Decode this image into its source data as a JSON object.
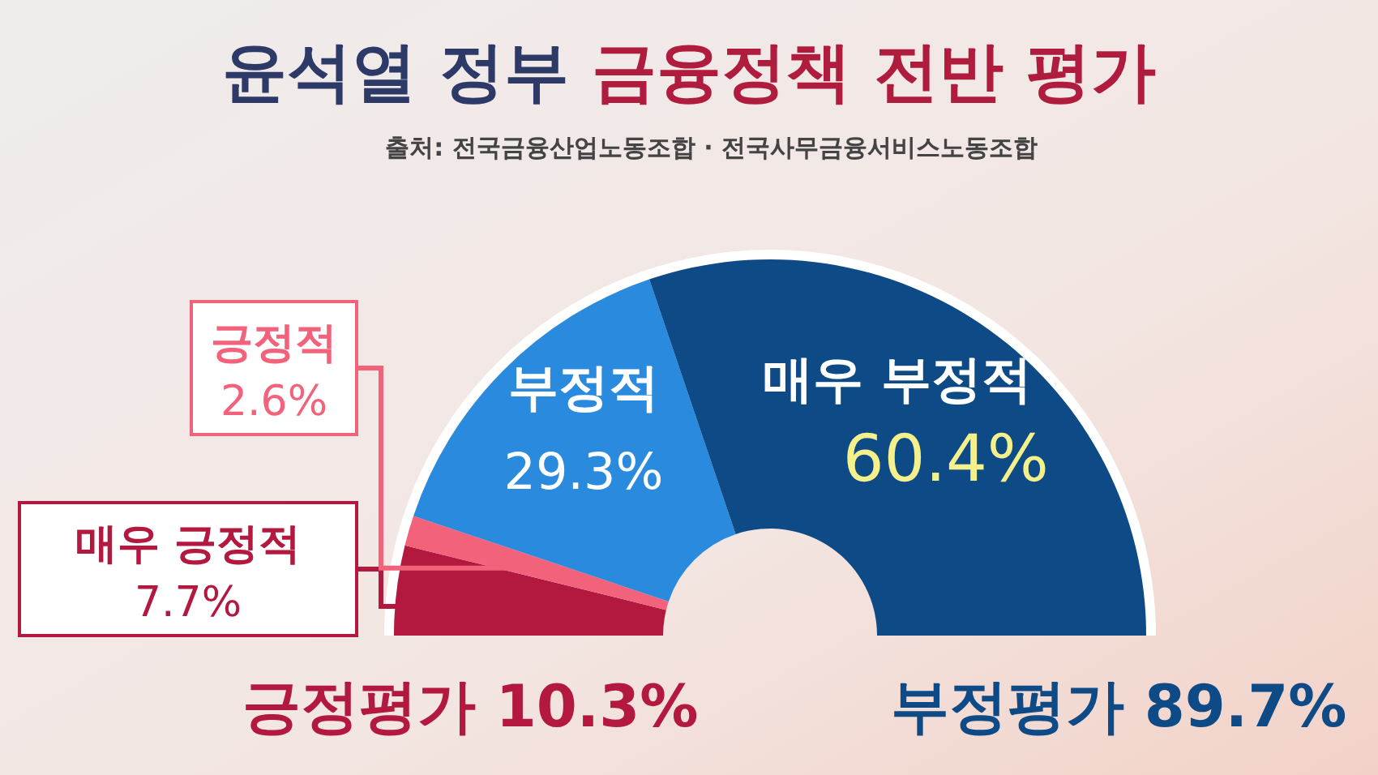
{
  "chart_data": {
    "type": "donut",
    "title": "윤석열 정부 금융정책 전반 평가",
    "subtitle": "출처: 전국금융산업노동조합 · 전국사무금융서비스노동조합",
    "categories": [
      "매우 긍정적",
      "긍정적",
      "부정적",
      "매우 부정적"
    ],
    "values": [
      7.7,
      2.6,
      29.3,
      60.4
    ],
    "value_labels": [
      "7.7%",
      "2.6%",
      "29.3%",
      "60.4%"
    ],
    "colors": [
      "#b3183f",
      "#f2637b",
      "#2a8ade",
      "#0e4a86"
    ],
    "annotations": [
      "긍정평가 10.3%",
      "부정평가 89.7%"
    ]
  }
}
